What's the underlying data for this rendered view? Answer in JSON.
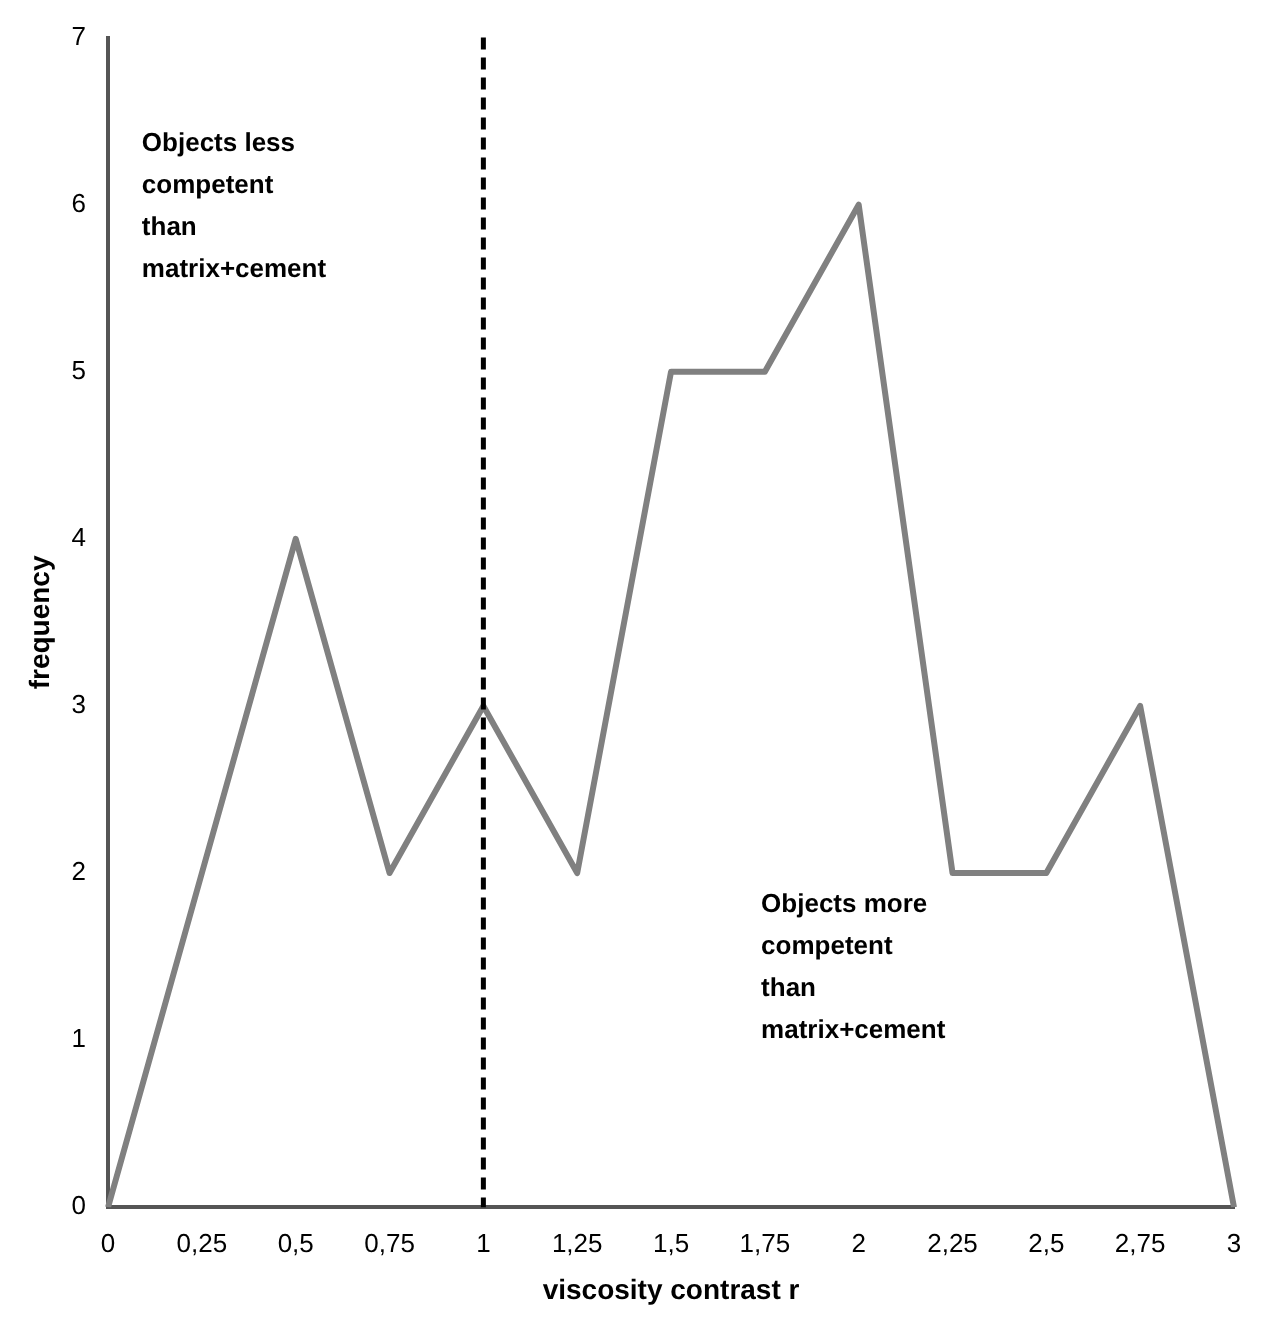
{
  "chart_data": {
    "type": "line",
    "xlabel": "viscosity contrast r",
    "ylabel": "frequency",
    "categories": [
      "0",
      "0,25",
      "0,5",
      "0,75",
      "1",
      "1,25",
      "1,5",
      "1,75",
      "2",
      "2,25",
      "2,5",
      "2,75",
      "3"
    ],
    "values": [
      0,
      2,
      4,
      2,
      3,
      2,
      5,
      5,
      6,
      2,
      2,
      3,
      0
    ],
    "color": "#808080",
    "marker": "none",
    "line_style": "solid",
    "grid": false,
    "legend": false,
    "ylim": [
      0,
      7
    ],
    "yticks": [
      0,
      1,
      2,
      3,
      4,
      5,
      6,
      7
    ],
    "ref_lines": [
      {
        "axis": "x",
        "value": "1",
        "color": "#000000",
        "line_style": "dashed"
      }
    ],
    "annotations": [
      "Objects less\ncompetent\nthan\nmatrix+cement",
      "Objects more\ncompetent\nthan\nmatrix+cement"
    ]
  }
}
